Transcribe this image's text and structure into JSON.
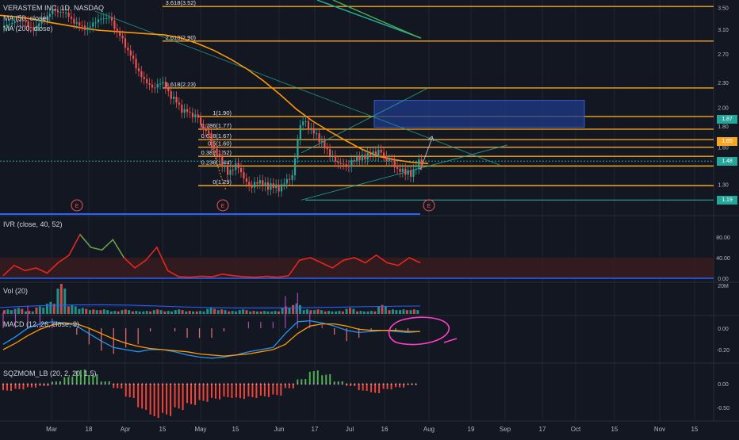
{
  "chart_title": "VERASTEM INC, 1D, NASDAQ",
  "ma50_label": "MA (50, close)",
  "ma200_label": "MA (200, close)",
  "colors": {
    "background": "#131722",
    "up": "#26a69a",
    "down": "#ef5350",
    "fib": "#f5a623",
    "ma50": "#ff9800",
    "ivr": "#e8251e",
    "macd": "#2196f3",
    "signal": "#ff9800",
    "sqz_up": "#4caf50",
    "sqz_down": "#f44336",
    "box": "#1e3a8a",
    "channel": "#26a69a",
    "annotation": "#ff3ec8"
  },
  "chart_data": [
    {
      "type": "candlestick",
      "pane": "price",
      "title": "VERASTEM INC, 1D, NASDAQ",
      "ylim": [
        1.1,
        3.65
      ],
      "y_scale": "log",
      "y_ticks": [
        "3.50",
        "3.10",
        "2.70",
        "2.30",
        "2.00",
        "1.80",
        "1.60",
        "1.30"
      ],
      "x_ticks": [
        "Mar",
        "18",
        "Apr",
        "15",
        "May",
        "15",
        "Jun",
        "17",
        "Jul",
        "16",
        "Aug",
        "19",
        "Sep",
        "17",
        "Oct",
        "15",
        "Nov",
        "15"
      ],
      "price_tags": [
        {
          "text": "1.87",
          "value": 1.87,
          "color": "#26a69a"
        },
        {
          "text": "1.65",
          "value": 1.65,
          "color": "#f5a623"
        },
        {
          "text": "1.48",
          "value": 1.48,
          "color": "#26a69a"
        },
        {
          "text": "1.19",
          "value": 1.19,
          "color": "#26a69a"
        }
      ],
      "fib_levels": [
        {
          "label": "3.618(3.52)",
          "value": 3.52
        },
        {
          "label": "2.618(2.90)",
          "value": 2.9
        },
        {
          "label": "1.618(2.23)",
          "value": 2.23
        },
        {
          "label": "1(1.90)",
          "value": 1.9
        },
        {
          "label": "0.786(1.77)",
          "value": 1.77
        },
        {
          "label": "0.618(1.67)",
          "value": 1.67
        },
        {
          "label": "0.5(1.60)",
          "value": 1.6
        },
        {
          "label": "0.382(1.52)",
          "value": 1.52
        },
        {
          "label": "0.236(1.44)",
          "value": 1.44
        },
        {
          "label": "0(1.29)",
          "value": 1.29
        }
      ],
      "support_level": 1.19,
      "earnings_markers": [
        "E",
        "E",
        "E"
      ],
      "ma50": [
        3.35,
        3.32,
        3.28,
        3.22,
        3.17,
        3.12,
        3.08,
        3.06,
        3.04,
        3.02,
        3.0,
        2.95,
        2.86,
        2.75,
        2.62,
        2.48,
        2.32,
        2.15,
        1.98,
        1.85,
        1.75,
        1.66,
        1.58,
        1.52,
        1.49,
        1.47,
        1.46
      ],
      "candles_close": [
        3.2,
        3.25,
        3.1,
        3.3,
        3.45,
        3.4,
        3.2,
        3.1,
        3.25,
        3.3,
        3.0,
        2.7,
        2.4,
        2.25,
        2.3,
        2.1,
        1.95,
        1.9,
        1.75,
        1.55,
        1.4,
        1.45,
        1.3,
        1.32,
        1.28,
        1.27,
        1.35,
        1.85,
        1.75,
        1.62,
        1.5,
        1.45,
        1.5,
        1.52,
        1.55,
        1.48,
        1.4,
        1.38,
        1.48
      ]
    },
    {
      "type": "area",
      "pane": "IVR",
      "title": "IVR (close, 40, 52)",
      "y_ticks": [
        "80.00",
        "40.00",
        "0.00"
      ],
      "values": [
        5,
        25,
        15,
        20,
        10,
        30,
        45,
        85,
        60,
        55,
        75,
        40,
        20,
        35,
        60,
        15,
        3,
        2,
        4,
        3,
        8,
        5,
        3,
        2,
        4,
        2,
        5,
        35,
        40,
        30,
        20,
        35,
        40,
        30,
        45,
        30,
        25,
        40,
        30
      ]
    },
    {
      "type": "bar",
      "pane": "volume",
      "title": "Vol (20)",
      "y_ticks": [
        "20M"
      ],
      "values": [
        3,
        4,
        2,
        5,
        8,
        20,
        6,
        4,
        3,
        3,
        2,
        3,
        2,
        2,
        3,
        2,
        3,
        2,
        2,
        4,
        3,
        2,
        3,
        2,
        2,
        2,
        5,
        7,
        3,
        3,
        2,
        2,
        4,
        2,
        2,
        6,
        3,
        3,
        3
      ]
    },
    {
      "type": "line",
      "pane": "MACD",
      "title": "MACD (12, 26, close, 9)",
      "y_ticks": [
        "0.00",
        "-0.20"
      ],
      "series": [
        {
          "name": "MACD",
          "values": [
            -0.15,
            -0.08,
            0.0,
            0.04,
            0.06,
            0.05,
            0.02,
            -0.05,
            -0.12,
            -0.18,
            -0.2,
            -0.22,
            -0.2,
            -0.2,
            -0.22,
            -0.25,
            -0.27,
            -0.28,
            -0.27,
            -0.25,
            -0.22,
            -0.2,
            -0.18,
            -0.05,
            0.06,
            0.07,
            0.05,
            0.02,
            -0.02,
            -0.04,
            -0.03,
            -0.02,
            -0.03,
            -0.04,
            -0.03
          ]
        },
        {
          "name": "Signal",
          "values": [
            -0.2,
            -0.14,
            -0.07,
            -0.01,
            0.03,
            0.05,
            0.04,
            0.0,
            -0.05,
            -0.1,
            -0.14,
            -0.17,
            -0.19,
            -0.2,
            -0.21,
            -0.22,
            -0.24,
            -0.25,
            -0.26,
            -0.25,
            -0.24,
            -0.22,
            -0.2,
            -0.15,
            -0.05,
            0.02,
            0.04,
            0.04,
            0.02,
            -0.01,
            -0.02,
            -0.02,
            -0.02,
            -0.03,
            -0.03
          ]
        }
      ]
    },
    {
      "type": "bar",
      "pane": "SQZMOM",
      "title": "SQZMOM_LB (20, 2, 20, 1.5)",
      "y_ticks": [
        "0.00",
        "-0.50"
      ],
      "values": [
        -0.15,
        -0.12,
        -0.08,
        -0.05,
        0.05,
        0.15,
        0.3,
        0.2,
        0.05,
        -0.1,
        -0.3,
        -0.55,
        -0.72,
        -0.68,
        -0.55,
        -0.45,
        -0.38,
        -0.33,
        -0.3,
        -0.32,
        -0.3,
        -0.28,
        -0.25,
        -0.1,
        0.1,
        0.28,
        0.2,
        0.05,
        -0.05,
        -0.15,
        -0.2,
        -0.12,
        -0.08,
        -0.03
      ]
    }
  ]
}
